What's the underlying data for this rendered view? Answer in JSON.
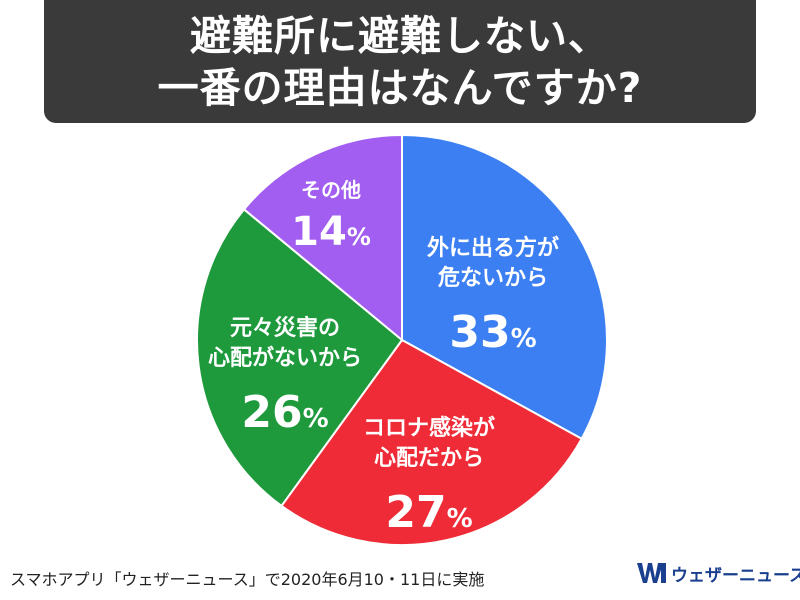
{
  "header": {
    "title_line1": "避難所に避難しない、",
    "title_line2": "一番の理由はなんですか?"
  },
  "chart_data": {
    "type": "pie",
    "title": "避難所に避難しない、一番の理由はなんですか?",
    "unit": "%",
    "slices": [
      {
        "label_lines": [
          "外に出る方が",
          "危ないから"
        ],
        "value": 33,
        "color": "#3b7ff2"
      },
      {
        "label_lines": [
          "コロナ感染が",
          "心配だから"
        ],
        "value": 27,
        "color": "#ee2b36"
      },
      {
        "label_lines": [
          "元々災害の",
          "心配がないから"
        ],
        "value": 26,
        "color": "#1e9a3d"
      },
      {
        "label_lines": [
          "その他"
        ],
        "value": 14,
        "color": "#a25ef0"
      }
    ],
    "start": "12 o'clock",
    "direction": "clockwise"
  },
  "footer": {
    "note": "スマホアプリ「ウェザーニュース」で2020年6月10・11日に実施",
    "brand": "ウェザーニュース"
  },
  "colors": {
    "title_bg": "#3a3a3a",
    "brand": "#1a3f8f"
  },
  "icons": {
    "brand_logo": "wni-logo-icon"
  }
}
